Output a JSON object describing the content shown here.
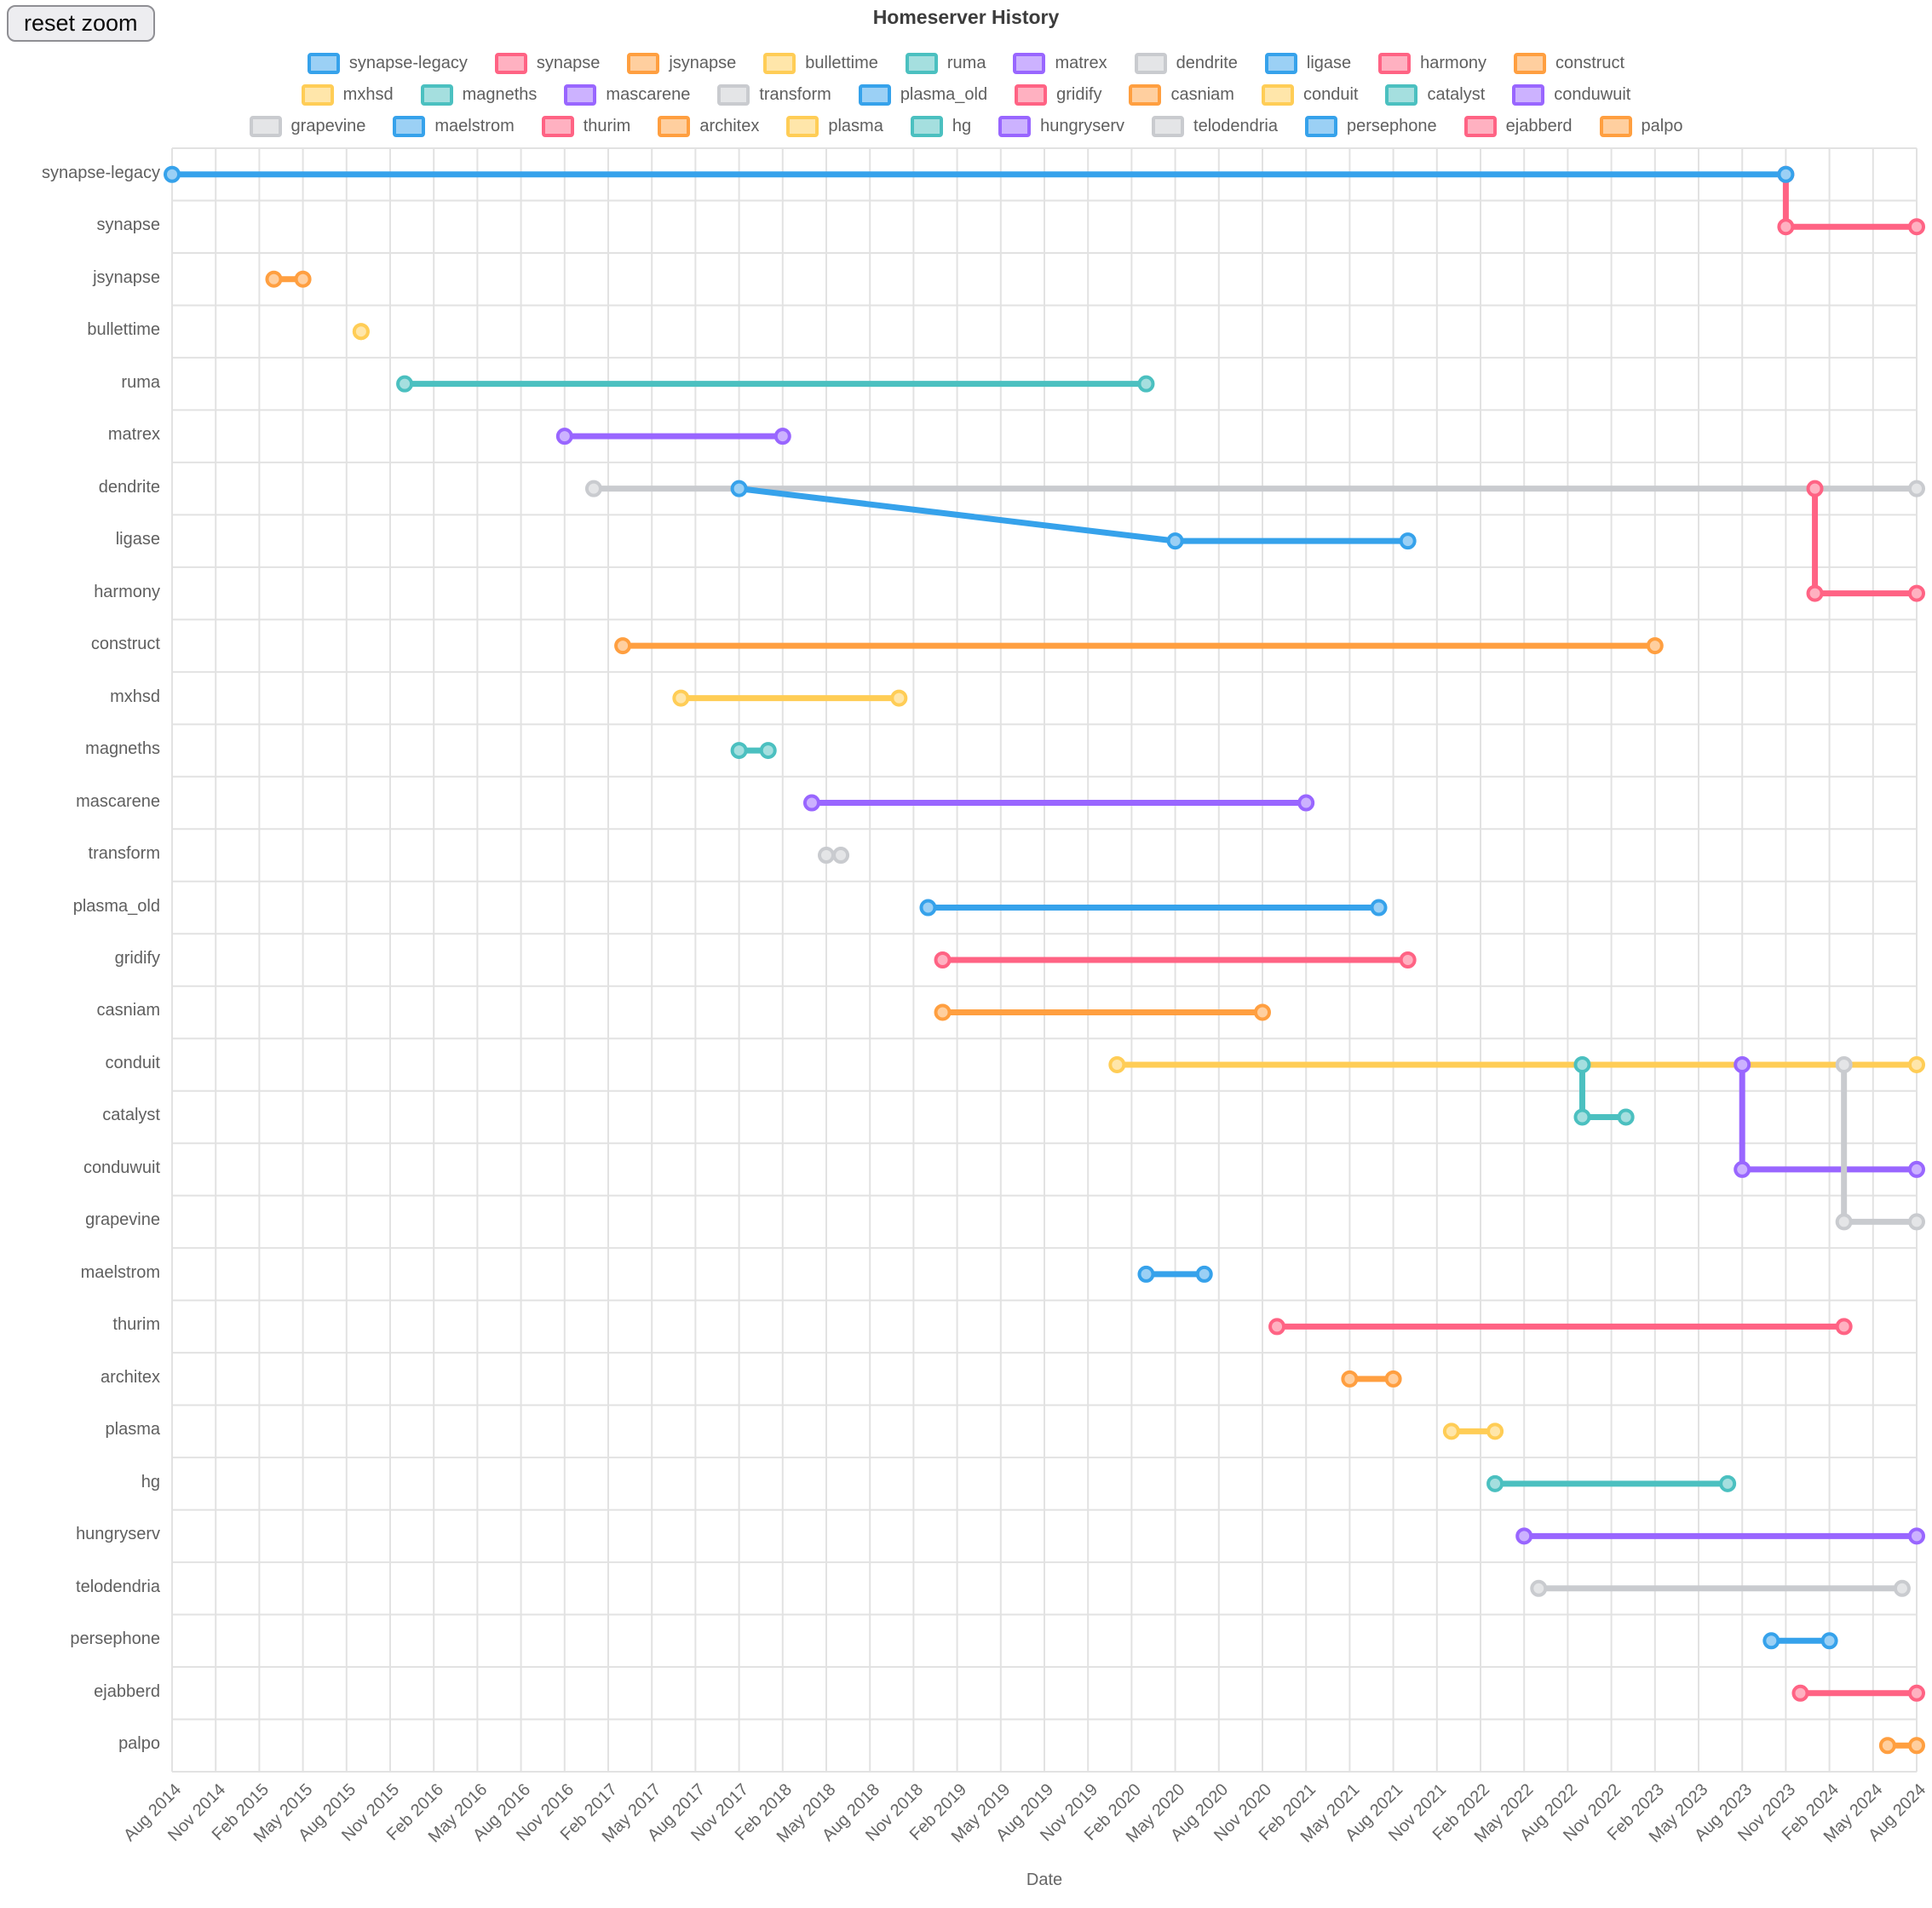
{
  "header": {
    "title": "Homeserver History",
    "reset_button_label": "reset zoom"
  },
  "axis": {
    "title": "Date",
    "x_start": "2014-08",
    "x_end": "2024-08",
    "tick_step_months": 3,
    "ticks": [
      "Aug 2014",
      "Nov 2014",
      "Feb 2015",
      "May 2015",
      "Aug 2015",
      "Nov 2015",
      "Feb 2016",
      "May 2016",
      "Aug 2016",
      "Nov 2016",
      "Feb 2017",
      "May 2017",
      "Aug 2017",
      "Nov 2017",
      "Feb 2018",
      "May 2018",
      "Aug 2018",
      "Nov 2018",
      "Feb 2019",
      "May 2019",
      "Aug 2019",
      "Nov 2019",
      "Feb 2020",
      "May 2020",
      "Aug 2020",
      "Nov 2020",
      "Feb 2021",
      "May 2021",
      "Aug 2021",
      "Nov 2021",
      "Feb 2022",
      "May 2022",
      "Aug 2022",
      "Nov 2022",
      "Feb 2023",
      "May 2023",
      "Aug 2023",
      "Nov 2023",
      "Feb 2024",
      "May 2024",
      "Aug 2024"
    ]
  },
  "legend": {
    "rows": [
      [
        "synapse-legacy",
        "synapse",
        "jsynapse",
        "bullettime",
        "ruma",
        "matrex",
        "dendrite",
        "ligase",
        "harmony",
        "construct"
      ],
      [
        "mxhsd",
        "magneths",
        "mascarene",
        "transform",
        "plasma_old",
        "gridify",
        "casniam",
        "conduit",
        "catalyst",
        "conduwuit"
      ],
      [
        "grapevine",
        "maelstrom",
        "thurim",
        "architex",
        "plasma",
        "hg",
        "hungryserv",
        "telodendria",
        "persephone",
        "ejabberd",
        "palpo"
      ]
    ]
  },
  "chart_data": {
    "type": "line",
    "title": "Homeserver History",
    "xlabel": "Date",
    "x_range": [
      "2014-08",
      "2024-08"
    ],
    "grid": true,
    "colors": {
      "grid": "#e2e2e2",
      "tick_text": "#666666",
      "title_text": "#3c3c3c"
    },
    "series": [
      {
        "name": "synapse-legacy",
        "color": "#36A2EB",
        "fill": "#9BD0F5",
        "start": "2014-08",
        "end": "2023-11"
      },
      {
        "name": "synapse",
        "color": "#FF6384",
        "fill": "#FFB1C1",
        "start": "2023-11",
        "end": "2024-08",
        "fork_from": "synapse-legacy",
        "fork_at": "2023-11",
        "connector": "vertical"
      },
      {
        "name": "jsynapse",
        "color": "#FF9F40",
        "fill": "#FFCF9F",
        "start": "2015-03",
        "end": "2015-05"
      },
      {
        "name": "bullettime",
        "color": "#FFCD56",
        "fill": "#FFE6AA",
        "start": "2015-09",
        "end": "2015-09"
      },
      {
        "name": "ruma",
        "color": "#4BC0C0",
        "fill": "#A5DFDF",
        "start": "2015-12",
        "end": "2020-03"
      },
      {
        "name": "matrex",
        "color": "#9966FF",
        "fill": "#CCB2FF",
        "start": "2016-11",
        "end": "2018-02"
      },
      {
        "name": "dendrite",
        "color": "#C9CBCF",
        "fill": "#E4E5E7",
        "start": "2017-01",
        "end": "2024-08"
      },
      {
        "name": "ligase",
        "color": "#36A2EB",
        "fill": "#9BD0F5",
        "start": "2020-05",
        "end": "2021-09",
        "fork_from": "dendrite",
        "fork_at": "2017-11",
        "connector": "diagonal"
      },
      {
        "name": "harmony",
        "color": "#FF6384",
        "fill": "#FFB1C1",
        "start": "2024-01",
        "end": "2024-08",
        "fork_from": "dendrite",
        "fork_at": "2024-01",
        "connector": "vertical"
      },
      {
        "name": "construct",
        "color": "#FF9F40",
        "fill": "#FFCF9F",
        "start": "2017-03",
        "end": "2023-02"
      },
      {
        "name": "mxhsd",
        "color": "#FFCD56",
        "fill": "#FFE6AA",
        "start": "2017-07",
        "end": "2018-10"
      },
      {
        "name": "magneths",
        "color": "#4BC0C0",
        "fill": "#A5DFDF",
        "start": "2017-11",
        "end": "2018-01"
      },
      {
        "name": "mascarene",
        "color": "#9966FF",
        "fill": "#CCB2FF",
        "start": "2018-04",
        "end": "2021-02"
      },
      {
        "name": "transform",
        "color": "#C9CBCF",
        "fill": "#E4E5E7",
        "start": "2018-05",
        "end": "2018-06"
      },
      {
        "name": "plasma_old",
        "color": "#36A2EB",
        "fill": "#9BD0F5",
        "start": "2018-12",
        "end": "2021-07"
      },
      {
        "name": "gridify",
        "color": "#FF6384",
        "fill": "#FFB1C1",
        "start": "2019-01",
        "end": "2021-09"
      },
      {
        "name": "casniam",
        "color": "#FF9F40",
        "fill": "#FFCF9F",
        "start": "2019-01",
        "end": "2020-11"
      },
      {
        "name": "conduit",
        "color": "#FFCD56",
        "fill": "#FFE6AA",
        "start": "2020-01",
        "end": "2024-08"
      },
      {
        "name": "catalyst",
        "color": "#4BC0C0",
        "fill": "#A5DFDF",
        "start": "2022-09",
        "end": "2022-12",
        "fork_from": "conduit",
        "fork_at": "2022-09",
        "connector": "vertical"
      },
      {
        "name": "conduwuit",
        "color": "#9966FF",
        "fill": "#CCB2FF",
        "start": "2023-08",
        "end": "2024-08",
        "fork_from": "conduit",
        "fork_at": "2023-08",
        "connector": "vertical"
      },
      {
        "name": "grapevine",
        "color": "#C9CBCF",
        "fill": "#E4E5E7",
        "start": "2024-03",
        "end": "2024-08",
        "fork_from": "conduit",
        "fork_at": "2024-03",
        "connector": "vertical"
      },
      {
        "name": "maelstrom",
        "color": "#36A2EB",
        "fill": "#9BD0F5",
        "start": "2020-03",
        "end": "2020-07"
      },
      {
        "name": "thurim",
        "color": "#FF6384",
        "fill": "#FFB1C1",
        "start": "2020-12",
        "end": "2024-03"
      },
      {
        "name": "architex",
        "color": "#FF9F40",
        "fill": "#FFCF9F",
        "start": "2021-05",
        "end": "2021-08"
      },
      {
        "name": "plasma",
        "color": "#FFCD56",
        "fill": "#FFE6AA",
        "start": "2021-12",
        "end": "2022-03"
      },
      {
        "name": "hg",
        "color": "#4BC0C0",
        "fill": "#A5DFDF",
        "start": "2022-03",
        "end": "2023-07"
      },
      {
        "name": "hungryserv",
        "color": "#9966FF",
        "fill": "#CCB2FF",
        "start": "2022-05",
        "end": "2024-08"
      },
      {
        "name": "telodendria",
        "color": "#C9CBCF",
        "fill": "#E4E5E7",
        "start": "2022-06",
        "end": "2024-07"
      },
      {
        "name": "persephone",
        "color": "#36A2EB",
        "fill": "#9BD0F5",
        "start": "2023-10",
        "end": "2024-02"
      },
      {
        "name": "ejabberd",
        "color": "#FF6384",
        "fill": "#FFB1C1",
        "start": "2023-12",
        "end": "2024-08"
      },
      {
        "name": "palpo",
        "color": "#FF9F40",
        "fill": "#FFCF9F",
        "start": "2024-06",
        "end": "2024-08"
      }
    ]
  }
}
